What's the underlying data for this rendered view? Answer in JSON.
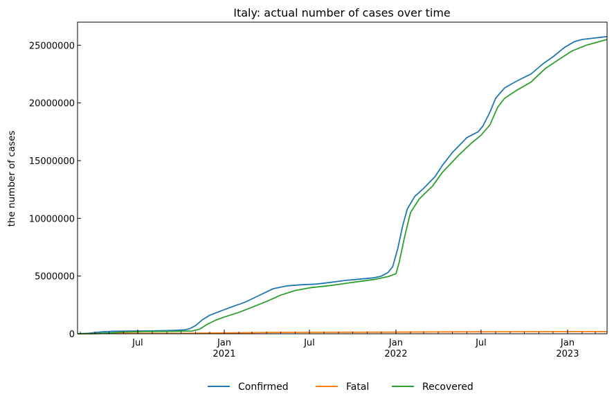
{
  "chart_data": {
    "type": "line",
    "title": "Italy: actual number of cases over time",
    "xlabel": "",
    "ylabel": "the number of cases",
    "ylim": [
      0,
      27000000
    ],
    "xlim": [
      "2020-02-24",
      "2023-03-26"
    ],
    "y_ticks": [
      0,
      5000000,
      10000000,
      15000000,
      20000000,
      25000000
    ],
    "y_tick_labels": [
      "0",
      "5000000",
      "10000000",
      "15000000",
      "20000000",
      "25000000"
    ],
    "x_ticks": [
      {
        "date": "2020-07-01",
        "label": "Jul",
        "year": ""
      },
      {
        "date": "2021-01-01",
        "label": "Jan",
        "year": "2021"
      },
      {
        "date": "2021-07-01",
        "label": "Jul",
        "year": ""
      },
      {
        "date": "2022-01-01",
        "label": "Jan",
        "year": "2022"
      },
      {
        "date": "2022-07-01",
        "label": "Jul",
        "year": ""
      },
      {
        "date": "2023-01-01",
        "label": "Jan",
        "year": "2023"
      }
    ],
    "grid": false,
    "legend_position": "bottom-center",
    "series": [
      {
        "name": "Confirmed",
        "color": "#1f77b4",
        "points": [
          [
            "2020-02-24",
            0
          ],
          [
            "2020-03-20",
            50000
          ],
          [
            "2020-04-15",
            165000
          ],
          [
            "2020-05-10",
            219000
          ],
          [
            "2020-06-15",
            237000
          ],
          [
            "2020-08-01",
            248000
          ],
          [
            "2020-09-15",
            290000
          ],
          [
            "2020-10-10",
            340000
          ],
          [
            "2020-10-20",
            450000
          ],
          [
            "2020-11-01",
            700000
          ],
          [
            "2020-11-15",
            1200000
          ],
          [
            "2020-12-01",
            1600000
          ],
          [
            "2020-12-20",
            1900000
          ],
          [
            "2021-01-15",
            2300000
          ],
          [
            "2021-02-15",
            2750000
          ],
          [
            "2021-03-15",
            3300000
          ],
          [
            "2021-04-15",
            3900000
          ],
          [
            "2021-05-15",
            4150000
          ],
          [
            "2021-06-15",
            4250000
          ],
          [
            "2021-07-15",
            4300000
          ],
          [
            "2021-08-15",
            4450000
          ],
          [
            "2021-09-15",
            4620000
          ],
          [
            "2021-10-15",
            4730000
          ],
          [
            "2021-11-15",
            4850000
          ],
          [
            "2021-12-01",
            5000000
          ],
          [
            "2021-12-15",
            5300000
          ],
          [
            "2021-12-25",
            5800000
          ],
          [
            "2022-01-05",
            7400000
          ],
          [
            "2022-01-15",
            9300000
          ],
          [
            "2022-01-25",
            10800000
          ],
          [
            "2022-02-10",
            11900000
          ],
          [
            "2022-03-01",
            12600000
          ],
          [
            "2022-03-25",
            13600000
          ],
          [
            "2022-04-10",
            14600000
          ],
          [
            "2022-05-01",
            15700000
          ],
          [
            "2022-06-01",
            17000000
          ],
          [
            "2022-06-25",
            17500000
          ],
          [
            "2022-07-05",
            18000000
          ],
          [
            "2022-07-20",
            19200000
          ],
          [
            "2022-08-01",
            20400000
          ],
          [
            "2022-08-20",
            21300000
          ],
          [
            "2022-09-15",
            21900000
          ],
          [
            "2022-10-15",
            22500000
          ],
          [
            "2022-11-10",
            23400000
          ],
          [
            "2022-12-01",
            24000000
          ],
          [
            "2022-12-25",
            24800000
          ],
          [
            "2023-01-15",
            25300000
          ],
          [
            "2023-02-01",
            25500000
          ],
          [
            "2023-03-26",
            25750000
          ]
        ]
      },
      {
        "name": "Fatal",
        "color": "#ff7f0e",
        "points": [
          [
            "2020-02-24",
            0
          ],
          [
            "2020-04-15",
            21000
          ],
          [
            "2020-06-01",
            33000
          ],
          [
            "2020-10-01",
            36000
          ],
          [
            "2020-12-31",
            74000
          ],
          [
            "2021-04-01",
            110000
          ],
          [
            "2021-07-01",
            127000
          ],
          [
            "2021-12-31",
            137000
          ],
          [
            "2022-04-01",
            160000
          ],
          [
            "2022-07-01",
            168000
          ],
          [
            "2022-12-31",
            184000
          ],
          [
            "2023-03-26",
            188000
          ]
        ]
      },
      {
        "name": "Recovered",
        "color": "#2ca02c",
        "points": [
          [
            "2020-02-24",
            0
          ],
          [
            "2020-04-01",
            15000
          ],
          [
            "2020-05-01",
            70000
          ],
          [
            "2020-06-01",
            150000
          ],
          [
            "2020-07-15",
            195000
          ],
          [
            "2020-09-15",
            210000
          ],
          [
            "2020-10-25",
            240000
          ],
          [
            "2020-11-10",
            400000
          ],
          [
            "2020-11-25",
            800000
          ],
          [
            "2020-12-15",
            1200000
          ],
          [
            "2021-01-01",
            1450000
          ],
          [
            "2021-02-01",
            1850000
          ],
          [
            "2021-03-01",
            2300000
          ],
          [
            "2021-04-01",
            2800000
          ],
          [
            "2021-05-01",
            3350000
          ],
          [
            "2021-06-01",
            3750000
          ],
          [
            "2021-07-01",
            3980000
          ],
          [
            "2021-08-15",
            4180000
          ],
          [
            "2021-10-01",
            4450000
          ],
          [
            "2021-11-15",
            4700000
          ],
          [
            "2021-12-15",
            4950000
          ],
          [
            "2022-01-01",
            5200000
          ],
          [
            "2022-01-08",
            6200000
          ],
          [
            "2022-01-20",
            8500000
          ],
          [
            "2022-02-01",
            10500000
          ],
          [
            "2022-02-20",
            11700000
          ],
          [
            "2022-03-20",
            12800000
          ],
          [
            "2022-04-10",
            14000000
          ],
          [
            "2022-05-15",
            15500000
          ],
          [
            "2022-06-10",
            16500000
          ],
          [
            "2022-07-01",
            17200000
          ],
          [
            "2022-07-20",
            18100000
          ],
          [
            "2022-08-05",
            19600000
          ],
          [
            "2022-08-20",
            20400000
          ],
          [
            "2022-09-15",
            21100000
          ],
          [
            "2022-10-15",
            21800000
          ],
          [
            "2022-11-15",
            23000000
          ],
          [
            "2022-12-15",
            23800000
          ],
          [
            "2023-01-10",
            24500000
          ],
          [
            "2023-02-10",
            25000000
          ],
          [
            "2023-03-26",
            25500000
          ]
        ]
      }
    ]
  }
}
